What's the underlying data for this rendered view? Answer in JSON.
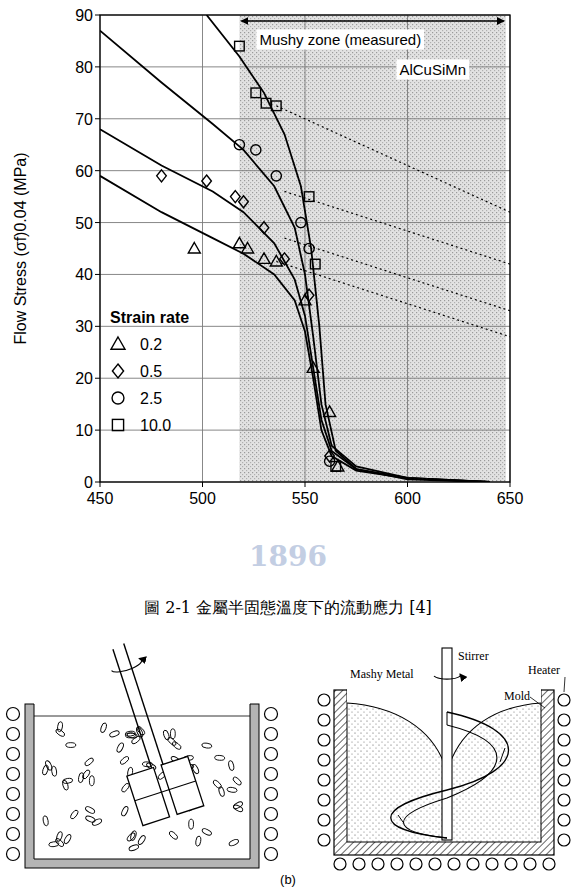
{
  "chart_data": {
    "type": "scatter",
    "ylabel": "Flow Stress (σf)0.04 (MPa)",
    "xlim": [
      450,
      650
    ],
    "xticks": [
      450,
      500,
      550,
      600,
      650
    ],
    "ylim": [
      0,
      90
    ],
    "yticks": [
      0,
      10,
      20,
      30,
      40,
      50,
      60,
      70,
      80,
      90
    ],
    "grid": true,
    "legend": "lower left",
    "legend_title": "Strain rate",
    "annotations": [
      {
        "text": "Mushy zone (measured)",
        "x": [
          518,
          648
        ]
      },
      {
        "text": "AlCuSiMn"
      }
    ],
    "series": [
      {
        "name": "0.2",
        "type": "scatter",
        "marker": "triangle",
        "color": "#000000",
        "x": [
          496,
          518,
          522,
          530,
          536,
          550,
          554,
          562,
          566
        ],
        "values": [
          45,
          46,
          45,
          43,
          42.5,
          35,
          22,
          13.5,
          3
        ]
      },
      {
        "name": "0.5",
        "type": "scatter",
        "marker": "diamond",
        "color": "#000000",
        "x": [
          480,
          502,
          516,
          520,
          530,
          540,
          552,
          562
        ],
        "values": [
          59,
          58,
          55,
          54,
          49,
          43,
          36,
          5
        ]
      },
      {
        "name": "2.5",
        "type": "scatter",
        "marker": "circle",
        "color": "#000000",
        "x": [
          518,
          526,
          536,
          548,
          552,
          562
        ],
        "values": [
          65,
          64,
          59,
          50,
          45,
          4
        ]
      },
      {
        "name": "10.0",
        "type": "scatter",
        "marker": "square",
        "color": "#000000",
        "x": [
          518,
          526,
          531,
          536,
          552,
          555,
          565
        ],
        "values": [
          84,
          75,
          73,
          72.5,
          55,
          42,
          3
        ]
      },
      {
        "type": "line",
        "line_style": "solid",
        "color": "#000000",
        "x": [
          502,
          518,
          530,
          540,
          548,
          553,
          557,
          560,
          565,
          575,
          600,
          640
        ],
        "values": [
          90,
          82,
          75,
          67,
          57,
          45,
          30,
          15,
          6,
          2.5,
          0.5,
          0
        ]
      },
      {
        "type": "line",
        "line_style": "solid",
        "color": "#000000",
        "x": [
          450,
          480,
          505,
          520,
          535,
          545,
          550,
          554,
          558,
          563,
          575,
          600,
          640
        ],
        "values": [
          87,
          77,
          69,
          64,
          57,
          49,
          40,
          28,
          15,
          7,
          3,
          0.8,
          0
        ]
      },
      {
        "type": "line",
        "line_style": "solid",
        "color": "#000000",
        "x": [
          450,
          480,
          505,
          520,
          535,
          545,
          550,
          554,
          558,
          563,
          575,
          600,
          640
        ],
        "values": [
          68,
          61,
          56,
          52,
          46,
          39,
          32,
          22,
          12,
          6,
          2.5,
          0.8,
          0
        ]
      },
      {
        "type": "line",
        "line_style": "solid",
        "color": "#000000",
        "x": [
          450,
          480,
          505,
          520,
          535,
          545,
          550,
          554,
          558,
          563,
          575,
          600,
          640
        ],
        "values": [
          59,
          52,
          47,
          44,
          40,
          35,
          29,
          20,
          10,
          5,
          2.2,
          0.7,
          0
        ]
      },
      {
        "type": "line",
        "line_style": "dotted",
        "color": "#000000",
        "x": [
          536,
          650
        ],
        "values": [
          72.5,
          52
        ]
      },
      {
        "type": "line",
        "line_style": "dotted",
        "color": "#000000",
        "x": [
          540,
          650
        ],
        "values": [
          56,
          42
        ]
      },
      {
        "type": "line",
        "line_style": "dotted",
        "color": "#000000",
        "x": [
          540,
          650
        ],
        "values": [
          47,
          33
        ]
      },
      {
        "type": "line",
        "line_style": "dotted",
        "color": "#000000",
        "x": [
          536,
          650
        ],
        "values": [
          42.5,
          28
        ]
      }
    ]
  },
  "caption": "圖 2-1 金屬半固態溫度下的流動應力 [4]",
  "watermark": "1896",
  "diagram": {
    "label": "(b)",
    "labels": [
      "Mashy Metal",
      "Stirrer",
      "Heater",
      "Mold"
    ]
  }
}
